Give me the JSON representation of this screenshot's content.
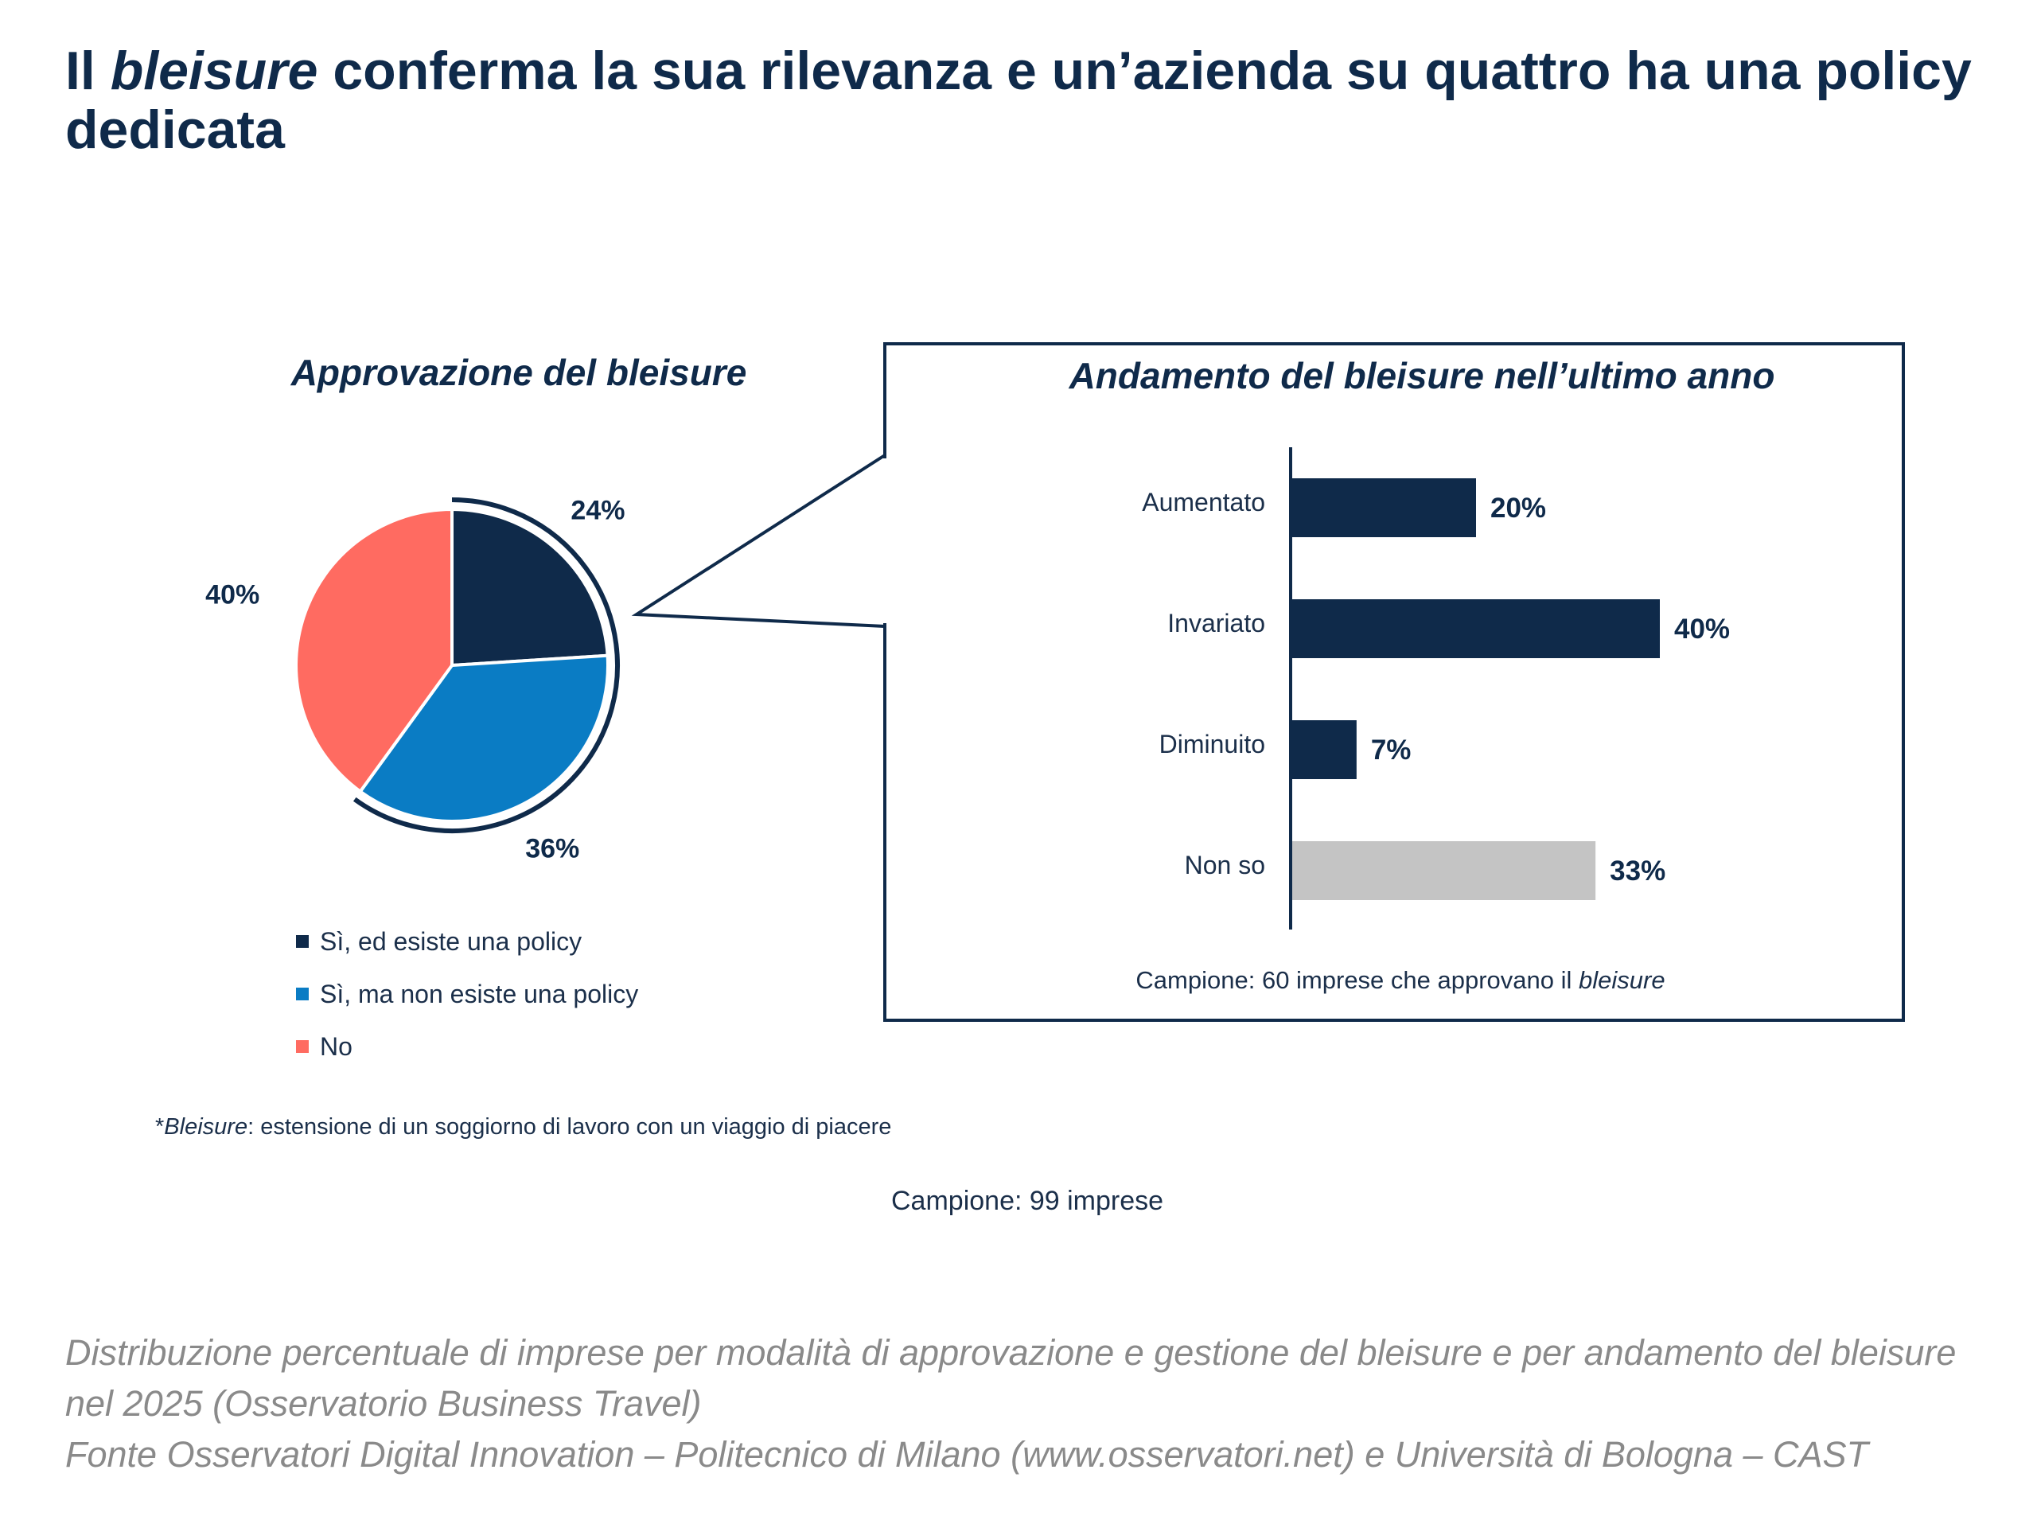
{
  "title": {
    "part1": "Il ",
    "italic": "bleisure",
    "part2": " conferma la sua rilevanza e un’azienda su quattro ha una policy dedicata"
  },
  "colors": {
    "navy": "#0f2a4a",
    "blue": "#0a7cc4",
    "coral": "#ff6b61",
    "grey": "#c4c4c4"
  },
  "chart_data": [
    {
      "type": "pie",
      "title": "Approvazione del bleisure",
      "slices": [
        {
          "label": "Sì, ed esiste una policy",
          "value": 24,
          "display": "24%",
          "color": "#0f2a4a"
        },
        {
          "label": "Sì, ma non esiste una policy",
          "value": 36,
          "display": "36%",
          "color": "#0a7cc4"
        },
        {
          "label": "No",
          "value": 40,
          "display": "40%",
          "color": "#ff6b61"
        }
      ],
      "highlighted": [
        "Sì, ed esiste una policy",
        "Sì, ma non esiste una policy"
      ]
    },
    {
      "type": "bar",
      "orientation": "horizontal",
      "title": "Andamento del bleisure nell’ultimo anno",
      "categories": [
        "Aumentato",
        "Invariato",
        "Diminuito",
        "Non so"
      ],
      "values": [
        20,
        40,
        7,
        33
      ],
      "labels": [
        "20%",
        "40%",
        "7%",
        "33%"
      ],
      "colors": [
        "#0f2a4a",
        "#0f2a4a",
        "#0f2a4a",
        "#c4c4c4"
      ],
      "xlim": [
        0,
        40
      ],
      "sample_prefix": "Campione: 60 imprese che approvano il ",
      "sample_italic": "bleisure"
    }
  ],
  "legend": [
    {
      "label": "Sì, ed esiste una policy",
      "color": "#0f2a4a"
    },
    {
      "label": "Sì, ma non esiste una policy",
      "color": "#0a7cc4"
    },
    {
      "label": "No",
      "color": "#ff6b61"
    }
  ],
  "footnote": {
    "prefix": "*",
    "italic": "Bleisure",
    "text": ": estensione di un soggiorno di lavoro con un viaggio di piacere"
  },
  "sample": "Campione: 99 imprese",
  "caption": {
    "line1": "Distribuzione percentuale di imprese per modalità di approvazione e gestione del bleisure e per andamento del bleisure nel 2025 (Osservatorio Business Travel)",
    "line2": "Fonte Osservatori Digital Innovation – Politecnico di Milano (www.osservatori.net) e Università di Bologna – CAST"
  }
}
